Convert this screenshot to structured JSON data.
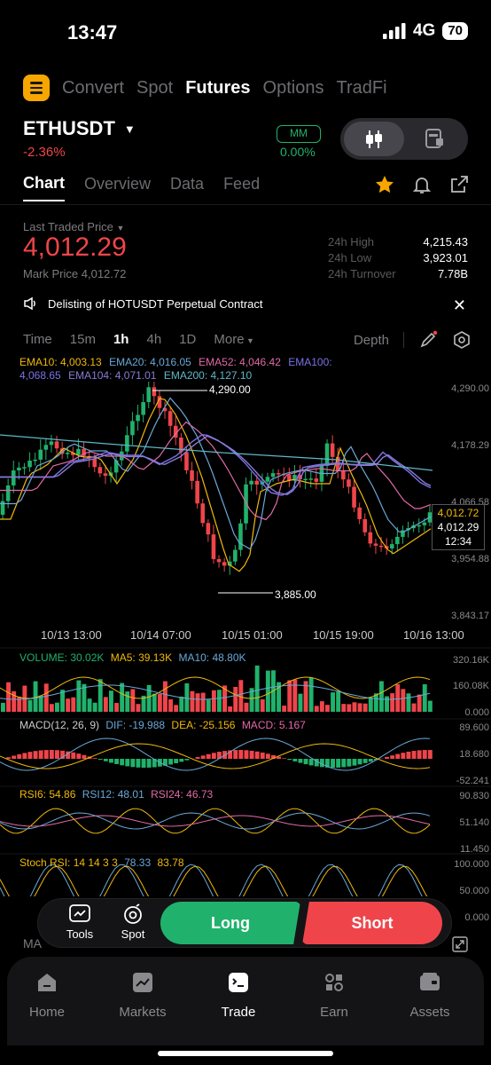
{
  "status": {
    "time": "13:47",
    "network": "4G",
    "battery": "70"
  },
  "top_nav": {
    "items": [
      "Convert",
      "Spot",
      "Futures",
      "Options",
      "TradFi"
    ],
    "active": "Futures"
  },
  "pair": {
    "symbol": "ETHUSDT",
    "change": "-2.36%",
    "mm_label": "MM",
    "mm_value": "0.00%"
  },
  "tabs": {
    "items": [
      "Chart",
      "Overview",
      "Data",
      "Feed"
    ],
    "active": "Chart"
  },
  "price": {
    "last_label": "Last Traded Price",
    "last_value": "4,012.29",
    "mark_label": "Mark Price",
    "mark_value": "4,012.72",
    "high_label": "24h High",
    "high_value": "4,215.43",
    "low_label": "24h Low",
    "low_value": "3,923.01",
    "turnover_label": "24h Turnover",
    "turnover_value": "7.78B"
  },
  "notice": {
    "text": "Delisting of HOTUSDT Perpetual Contract"
  },
  "chart_toolbar": {
    "timeframes": [
      "Time",
      "15m",
      "1h",
      "4h",
      "1D",
      "More"
    ],
    "active": "1h",
    "depth_label": "Depth"
  },
  "ema_legend": {
    "ema10": "EMA10: 4,003.13",
    "ema20": "EMA20: 4,016.05",
    "ema52": "EMA52: 4,046.42",
    "ema100": "EMA100:",
    "ema100_value": "4,068.65",
    "ema104": "EMA104: 4,071.01",
    "ema200": "EMA200: 4,127.10"
  },
  "colors": {
    "green": "#20b26c",
    "red": "#ef454a",
    "ema10": "#f0b90b",
    "ema20": "#6aa8d8",
    "ema52": "#e26aa8",
    "ema100": "#7b72e6",
    "ema104": "#8a7ad6",
    "ema200": "#5fb7c9"
  },
  "chart_data": {
    "type": "candlestick",
    "price_axis": [
      "4,290.00",
      "4,178.29",
      "4,066.58",
      "3,954.88",
      "3,843.17"
    ],
    "time_axis": [
      "10/13 13:00",
      "10/14 07:00",
      "10/15 01:00",
      "10/15 19:00",
      "10/16 13:00"
    ],
    "high_marker": "4,290.00",
    "low_marker": "3,885.00",
    "current_price_tag": [
      "4,012.72",
      "4,012.29",
      "12:34"
    ],
    "ylim": [
      3843.17,
      4290.0
    ]
  },
  "volume": {
    "label": "VOLUME: 30.02K",
    "ma5": "MA5: 39.13K",
    "ma10": "MA10: 48.80K",
    "axis": [
      "320.16K",
      "160.08K",
      "0.000"
    ]
  },
  "macd": {
    "label": "MACD(12, 26, 9)",
    "dif": "DIF: -19.988",
    "dea": "DEA: -25.156",
    "macd": "MACD: 5.167",
    "axis": [
      "89.600",
      "18.680",
      "-52.241"
    ]
  },
  "rsi": {
    "rsi6": "RSI6: 54.86",
    "rsi12": "RSI12: 48.01",
    "rsi24": "RSI24: 46.73",
    "axis": [
      "90.830",
      "51.140",
      "11.450"
    ]
  },
  "stoch": {
    "label": "Stoch RSI: 14 14 3 3",
    "k": "78.33",
    "d": "83.78",
    "axis": [
      "100.000",
      "50.000",
      "0.000"
    ]
  },
  "bottom_partial": {
    "label": "MA"
  },
  "actions": {
    "tools": "Tools",
    "spot": "Spot",
    "long": "Long",
    "short": "Short"
  },
  "bottom_nav": {
    "items": [
      "Home",
      "Markets",
      "Trade",
      "Earn",
      "Assets"
    ],
    "active": "Trade"
  }
}
